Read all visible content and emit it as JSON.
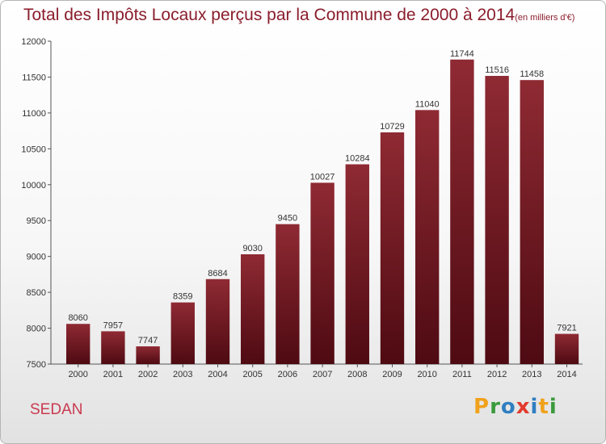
{
  "header": {
    "title": "Total des Impôts Locaux perçus par la Commune de 2000 à 2014",
    "unit": "(en milliers d'€)"
  },
  "footer": {
    "commune": "SEDAN",
    "brand_letters": [
      {
        "char": "P",
        "color": "#f0a21c"
      },
      {
        "char": "r",
        "color": "#3a9a3c"
      },
      {
        "char": "o",
        "color": "#2f7fc1"
      },
      {
        "char": "x",
        "color": "#e23b2e"
      },
      {
        "char": "i",
        "color": "#2f7fc1"
      },
      {
        "char": "t",
        "color": "#f0a21c"
      },
      {
        "char": "i",
        "color": "#3a9a3c"
      }
    ]
  },
  "chart_data": {
    "type": "bar",
    "title": "Total des Impôts Locaux perçus par la Commune de 2000 à 2014",
    "categories": [
      "2000",
      "2001",
      "2002",
      "2003",
      "2004",
      "2005",
      "2006",
      "2007",
      "2008",
      "2009",
      "2010",
      "2011",
      "2012",
      "2013",
      "2014"
    ],
    "values": [
      8060,
      7957,
      7747,
      8359,
      8684,
      9030,
      9450,
      10027,
      10284,
      10729,
      11040,
      11744,
      11516,
      11458,
      7921
    ],
    "ylim": [
      7500,
      12000
    ],
    "yticks": [
      7500,
      8000,
      8500,
      9000,
      9500,
      10000,
      10500,
      11000,
      11500,
      12000
    ],
    "grid": false,
    "bar_color": "#7a1a24"
  }
}
